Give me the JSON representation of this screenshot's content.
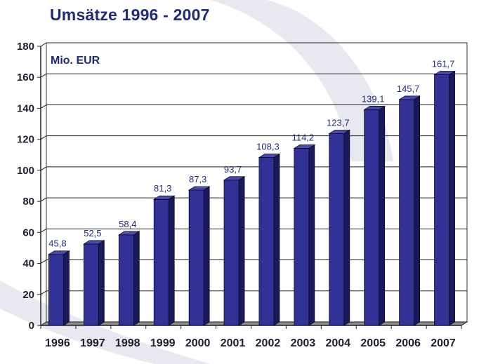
{
  "title": "Umsätze 1996 - 2007",
  "colors": {
    "bar_front": "#323296",
    "bar_top": "#4a4aae",
    "bar_side": "#1a1a5a",
    "title": "#1f2a7a",
    "watermark": "#e6e6ef"
  },
  "chart_data": {
    "type": "bar",
    "title": "Umsätze 1996 - 2007",
    "unit_label": "Mio. EUR",
    "xlabel": "",
    "ylabel": "Mio. EUR",
    "categories": [
      "1996",
      "1997",
      "1998",
      "1999",
      "2000",
      "2001",
      "2002",
      "2003",
      "2004",
      "2005",
      "2006",
      "2007"
    ],
    "values": [
      45.8,
      52.5,
      58.4,
      81.3,
      87.3,
      93.7,
      108.3,
      114.2,
      123.7,
      139.1,
      145.7,
      161.7
    ],
    "value_labels": [
      "45,8",
      "52,5",
      "58,4",
      "81,3",
      "87,3",
      "93,7",
      "108,3",
      "114,2",
      "123,7",
      "139,1",
      "145,7",
      "161,7"
    ],
    "yticks": [
      0,
      20,
      40,
      60,
      80,
      100,
      120,
      140,
      160,
      180
    ],
    "ylim": [
      0,
      180
    ],
    "grid": true,
    "legend": "none"
  }
}
